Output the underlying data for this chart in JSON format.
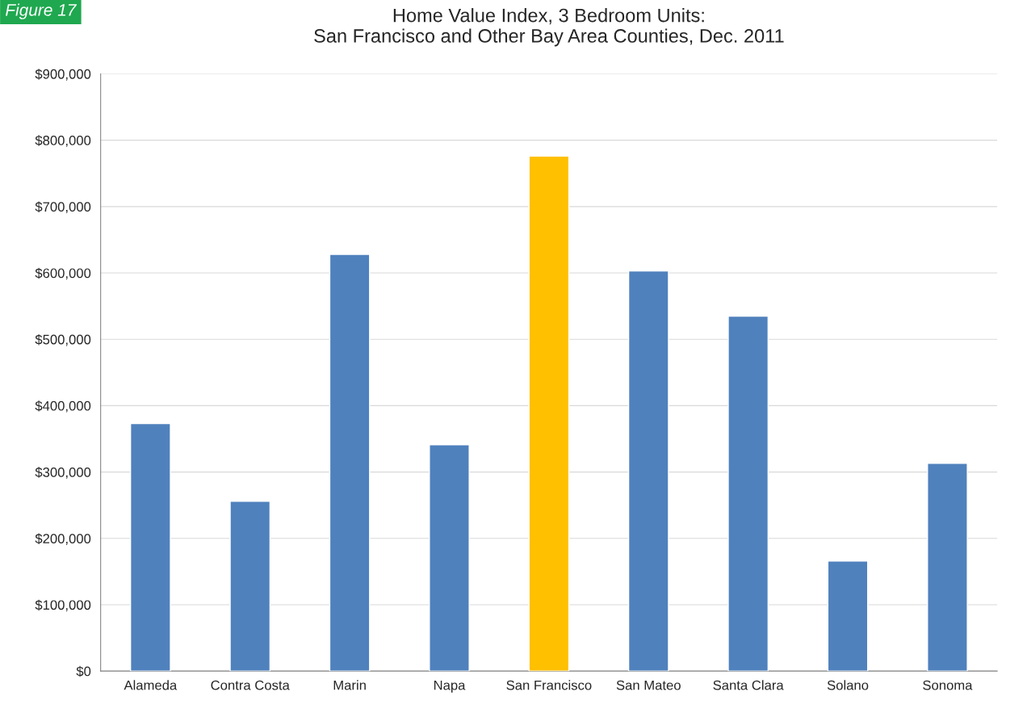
{
  "chart_data": {
    "type": "bar",
    "title": "Home Value Index, 3 Bedroom Units:\nSan Francisco and Other Bay Area Counties, Dec. 2011",
    "annotations": [
      "Figure 17"
    ],
    "categories": [
      "Alameda",
      "Contra Costa",
      "Marin",
      "Napa",
      "San Francisco",
      "San Mateo",
      "Santa Clara",
      "Solano",
      "Sonoma"
    ],
    "values": [
      373000,
      256000,
      628000,
      341000,
      776000,
      603000,
      535000,
      166000,
      313000
    ],
    "colors": [
      "#4f81bd",
      "#4f81bd",
      "#4f81bd",
      "#4f81bd",
      "#ffc000",
      "#4f81bd",
      "#4f81bd",
      "#4f81bd",
      "#4f81bd"
    ],
    "ylim": [
      0,
      900000
    ],
    "yticks": [
      {
        "value": 0,
        "label": "$0"
      },
      {
        "value": 100000,
        "label": "$100,000"
      },
      {
        "value": 200000,
        "label": "$200,000"
      },
      {
        "value": 300000,
        "label": "$300,000"
      },
      {
        "value": 400000,
        "label": "$400,000"
      },
      {
        "value": 500000,
        "label": "$500,000"
      },
      {
        "value": 600000,
        "label": "$600,000"
      },
      {
        "value": 700000,
        "label": "$700,000"
      },
      {
        "value": 800000,
        "label": "$800,000"
      },
      {
        "value": 900000,
        "label": "$900,000"
      }
    ],
    "grid": "y",
    "legend": false
  }
}
